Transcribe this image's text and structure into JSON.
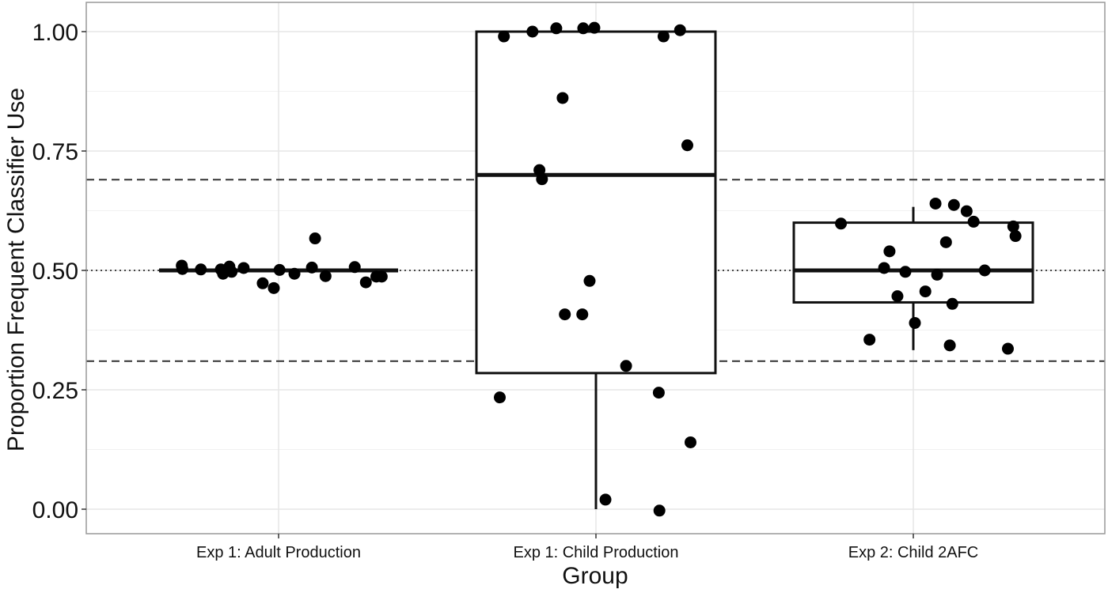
{
  "chart_data": {
    "type": "box",
    "xlabel": "Group",
    "ylabel": "Proportion Frequent Classifier Use",
    "categories": [
      "Exp 1: Adult Production",
      "Exp 1: Child Production",
      "Exp 2: Child 2AFC"
    ],
    "ylim": [
      -0.05,
      1.05
    ],
    "yticks": [
      0.0,
      0.25,
      0.5,
      0.75,
      1.0
    ],
    "ytick_labels": [
      "0.00",
      "0.25",
      "0.50",
      "0.75",
      "1.00"
    ],
    "grid": true,
    "reference_lines": [
      {
        "y": 0.69,
        "style": "dashed"
      },
      {
        "y": 0.5,
        "style": "dotted"
      },
      {
        "y": 0.31,
        "style": "dashed"
      }
    ],
    "boxes": [
      {
        "category": "Exp 1: Adult Production",
        "q1": 0.5,
        "median": 0.5,
        "q3": 0.5,
        "whisker_low": 0.5,
        "whisker_high": 0.5
      },
      {
        "category": "Exp 1: Child Production",
        "q1": 0.285,
        "median": 0.7,
        "q3": 1.0,
        "whisker_low": 0.0,
        "whisker_high": 1.0
      },
      {
        "category": "Exp 2: Child 2AFC",
        "q1": 0.433,
        "median": 0.5,
        "q3": 0.6,
        "whisker_low": 0.333,
        "whisker_high": 0.633
      }
    ],
    "points": [
      {
        "category": "Exp 1: Adult Production",
        "values": [
          {
            "jitter": -0.305,
            "y": 0.51
          },
          {
            "jitter": -0.303,
            "y": 0.503
          },
          {
            "jitter": -0.245,
            "y": 0.502
          },
          {
            "jitter": -0.182,
            "y": 0.502
          },
          {
            "jitter": -0.175,
            "y": 0.493
          },
          {
            "jitter": -0.155,
            "y": 0.508
          },
          {
            "jitter": -0.148,
            "y": 0.497
          },
          {
            "jitter": -0.11,
            "y": 0.505
          },
          {
            "jitter": -0.05,
            "y": 0.473
          },
          {
            "jitter": -0.015,
            "y": 0.463
          },
          {
            "jitter": 0.003,
            "y": 0.501
          },
          {
            "jitter": 0.05,
            "y": 0.493
          },
          {
            "jitter": 0.105,
            "y": 0.506
          },
          {
            "jitter": 0.115,
            "y": 0.567
          },
          {
            "jitter": 0.148,
            "y": 0.488
          },
          {
            "jitter": 0.24,
            "y": 0.507
          },
          {
            "jitter": 0.275,
            "y": 0.475
          },
          {
            "jitter": 0.308,
            "y": 0.487
          },
          {
            "jitter": 0.325,
            "y": 0.487
          }
        ]
      },
      {
        "category": "Exp 1: Child Production",
        "values": [
          {
            "jitter": -0.303,
            "y": 0.234
          },
          {
            "jitter": -0.29,
            "y": 0.99
          },
          {
            "jitter": -0.2,
            "y": 1.0
          },
          {
            "jitter": -0.178,
            "y": 0.71
          },
          {
            "jitter": -0.17,
            "y": 0.691
          },
          {
            "jitter": -0.125,
            "y": 1.007
          },
          {
            "jitter": -0.105,
            "y": 0.861
          },
          {
            "jitter": -0.098,
            "y": 0.408
          },
          {
            "jitter": -0.043,
            "y": 0.408
          },
          {
            "jitter": -0.04,
            "y": 1.007
          },
          {
            "jitter": -0.02,
            "y": 0.478
          },
          {
            "jitter": -0.005,
            "y": 1.008
          },
          {
            "jitter": 0.03,
            "y": 0.02
          },
          {
            "jitter": 0.095,
            "y": 0.3
          },
          {
            "jitter": 0.198,
            "y": 0.244
          },
          {
            "jitter": 0.2,
            "y": -0.003
          },
          {
            "jitter": 0.213,
            "y": 0.99
          },
          {
            "jitter": 0.265,
            "y": 1.003
          },
          {
            "jitter": 0.288,
            "y": 0.762
          },
          {
            "jitter": 0.298,
            "y": 0.14
          }
        ]
      },
      {
        "category": "Exp 2: Child 2AFC",
        "values": [
          {
            "jitter": -0.228,
            "y": 0.598
          },
          {
            "jitter": -0.138,
            "y": 0.355
          },
          {
            "jitter": -0.092,
            "y": 0.505
          },
          {
            "jitter": -0.075,
            "y": 0.54
          },
          {
            "jitter": -0.05,
            "y": 0.446
          },
          {
            "jitter": -0.025,
            "y": 0.497
          },
          {
            "jitter": 0.005,
            "y": 0.39
          },
          {
            "jitter": 0.038,
            "y": 0.456
          },
          {
            "jitter": 0.07,
            "y": 0.64
          },
          {
            "jitter": 0.075,
            "y": 0.491
          },
          {
            "jitter": 0.103,
            "y": 0.559
          },
          {
            "jitter": 0.115,
            "y": 0.343
          },
          {
            "jitter": 0.123,
            "y": 0.43
          },
          {
            "jitter": 0.128,
            "y": 0.637
          },
          {
            "jitter": 0.168,
            "y": 0.624
          },
          {
            "jitter": 0.19,
            "y": 0.602
          },
          {
            "jitter": 0.225,
            "y": 0.5
          },
          {
            "jitter": 0.298,
            "y": 0.336
          },
          {
            "jitter": 0.315,
            "y": 0.592
          },
          {
            "jitter": 0.322,
            "y": 0.572
          }
        ]
      }
    ]
  }
}
